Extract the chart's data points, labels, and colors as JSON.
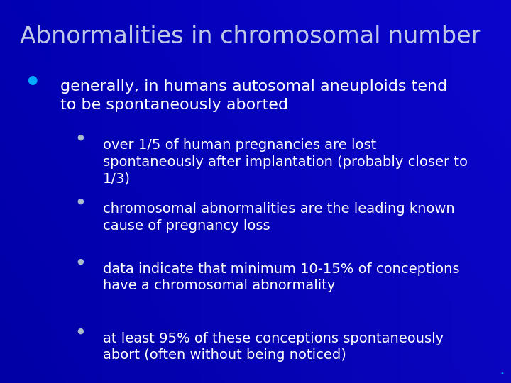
{
  "title": "Abnormalities in chromosomal number",
  "title_color": "#c0c8e8",
  "title_fontsize": 24,
  "background_color": "#0000bb",
  "text_color": "#ffffff",
  "bullet_color_l1": "#00aaff",
  "bullet_color_l2": "#aabbcc",
  "bullet1_text": "generally, in humans autosomal aneuploids tend\nto be spontaneously aborted",
  "bullet1_fontsize": 16,
  "subbullet_fontsize": 14,
  "subbullets": [
    "over 1/5 of human pregnancies are lost\nspontaneously after implantation (probably closer to\n1/3)",
    "chromosomal abnormalities are the leading known\ncause of pregnancy loss",
    "data indicate that minimum 10-15% of conceptions\nhave a chromosomal abnormality",
    "at least 95% of these conceptions spontaneously\nabort (often without being noticed)"
  ]
}
